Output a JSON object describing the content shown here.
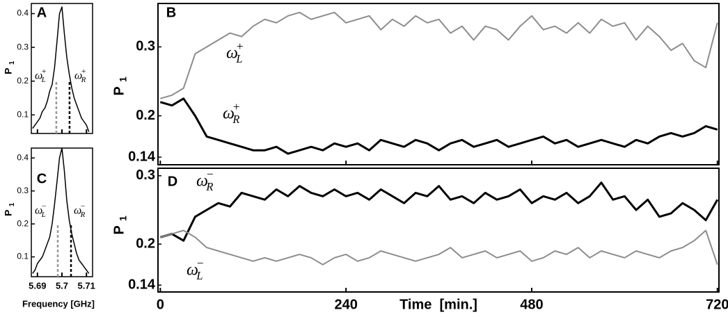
{
  "chart_data": [
    {
      "type": "line",
      "panel": "A",
      "ylabel": {
        "text": "P",
        "sub": "1"
      },
      "xlim": [
        5.6875,
        5.7125
      ],
      "ylim": [
        0.045,
        0.43
      ],
      "xticks": [
        5.69,
        5.7,
        5.71
      ],
      "yticks": [
        0.1,
        0.2,
        0.3,
        0.4
      ],
      "x": [
        5.688,
        5.689,
        5.69,
        5.691,
        5.692,
        5.693,
        5.694,
        5.695,
        5.696,
        5.697,
        5.698,
        5.699,
        5.7,
        5.701,
        5.702,
        5.703,
        5.704,
        5.705,
        5.706,
        5.707,
        5.708,
        5.709,
        5.71,
        5.711
      ],
      "series": [
        {
          "color": "#000000",
          "values": [
            0.06,
            0.07,
            0.08,
            0.09,
            0.11,
            0.12,
            0.14,
            0.17,
            0.19,
            0.24,
            0.32,
            0.4,
            0.42,
            0.34,
            0.27,
            0.22,
            0.18,
            0.15,
            0.13,
            0.11,
            0.09,
            0.08,
            0.07,
            0.05
          ]
        }
      ],
      "markers": [
        {
          "x": 5.6977,
          "height": 0.2,
          "color": "#999999",
          "name": "ω",
          "sub": "L",
          "sup": "+"
        },
        {
          "x": 5.7031,
          "height": 0.2,
          "color": "#000000",
          "name": "ω",
          "sub": "R",
          "sup": "+"
        }
      ]
    },
    {
      "type": "line",
      "panel": "B",
      "ylabel": {
        "text": "P",
        "sub": "1"
      },
      "xlim": [
        -3,
        722
      ],
      "ylim": [
        0.129,
        0.363
      ],
      "xticks": [
        0,
        240,
        480,
        720
      ],
      "yticks": [
        0.14,
        0.2,
        0.3
      ],
      "x": [
        0,
        15,
        30,
        45,
        60,
        75,
        90,
        105,
        120,
        135,
        150,
        165,
        180,
        195,
        210,
        225,
        240,
        255,
        270,
        285,
        300,
        315,
        330,
        345,
        360,
        375,
        390,
        405,
        420,
        435,
        450,
        465,
        480,
        495,
        510,
        525,
        540,
        555,
        570,
        585,
        600,
        615,
        630,
        645,
        660,
        675,
        690,
        705,
        720
      ],
      "series": [
        {
          "name": "ω",
          "sub": "L",
          "sup": "+",
          "color": "#8c8c8c",
          "width": 2,
          "values": [
            0.225,
            0.23,
            0.24,
            0.29,
            0.3,
            0.31,
            0.32,
            0.315,
            0.33,
            0.34,
            0.335,
            0.345,
            0.35,
            0.34,
            0.345,
            0.35,
            0.335,
            0.34,
            0.345,
            0.325,
            0.34,
            0.33,
            0.345,
            0.335,
            0.34,
            0.32,
            0.33,
            0.31,
            0.33,
            0.325,
            0.31,
            0.33,
            0.345,
            0.325,
            0.33,
            0.32,
            0.335,
            0.32,
            0.34,
            0.33,
            0.335,
            0.31,
            0.33,
            0.315,
            0.295,
            0.305,
            0.28,
            0.27,
            0.335
          ]
        },
        {
          "name": "ω",
          "sub": "R",
          "sup": "+",
          "color": "#000000",
          "width": 3,
          "values": [
            0.22,
            0.215,
            0.225,
            0.2,
            0.17,
            0.165,
            0.16,
            0.155,
            0.15,
            0.15,
            0.155,
            0.145,
            0.15,
            0.155,
            0.15,
            0.16,
            0.155,
            0.16,
            0.15,
            0.165,
            0.16,
            0.155,
            0.165,
            0.16,
            0.15,
            0.16,
            0.165,
            0.155,
            0.16,
            0.165,
            0.155,
            0.16,
            0.165,
            0.17,
            0.16,
            0.165,
            0.155,
            0.16,
            0.165,
            0.16,
            0.155,
            0.165,
            0.16,
            0.17,
            0.175,
            0.17,
            0.175,
            0.185,
            0.18
          ]
        }
      ]
    },
    {
      "type": "line",
      "panel": "C",
      "ylabel": {
        "text": "P",
        "sub": "1"
      },
      "xlabel": "Frequency [GHz]",
      "xlim": [
        5.6875,
        5.7125
      ],
      "ylim": [
        0.04,
        0.43
      ],
      "xticks": [
        5.69,
        5.7,
        5.71
      ],
      "yticks": [
        0.1,
        0.2,
        0.3,
        0.4
      ],
      "x": [
        5.688,
        5.689,
        5.69,
        5.691,
        5.692,
        5.693,
        5.694,
        5.695,
        5.696,
        5.697,
        5.698,
        5.699,
        5.7,
        5.701,
        5.702,
        5.703,
        5.704,
        5.705,
        5.706,
        5.707,
        5.708,
        5.709,
        5.71,
        5.711
      ],
      "series": [
        {
          "color": "#000000",
          "values": [
            0.05,
            0.06,
            0.08,
            0.09,
            0.1,
            0.12,
            0.14,
            0.16,
            0.2,
            0.26,
            0.33,
            0.4,
            0.43,
            0.36,
            0.27,
            0.21,
            0.17,
            0.14,
            0.11,
            0.09,
            0.08,
            0.07,
            0.06,
            0.05
          ]
        }
      ],
      "markers": [
        {
          "x": 5.6983,
          "height": 0.2,
          "color": "#999999",
          "name": "ω",
          "sub": "L",
          "sup": "−"
        },
        {
          "x": 5.7037,
          "height": 0.2,
          "color": "#000000",
          "name": "ω",
          "sub": "R",
          "sup": "−"
        }
      ]
    },
    {
      "type": "line",
      "panel": "D",
      "ylabel": {
        "text": "P",
        "sub": "1"
      },
      "xlabel": "Time  [min.]",
      "xlim": [
        -3,
        722
      ],
      "ylim": [
        0.13,
        0.311
      ],
      "xticks": [
        0,
        240,
        480,
        720
      ],
      "yticks": [
        0.14,
        0.2,
        0.3
      ],
      "x": [
        0,
        15,
        30,
        45,
        60,
        75,
        90,
        105,
        120,
        135,
        150,
        165,
        180,
        195,
        210,
        225,
        240,
        255,
        270,
        285,
        300,
        315,
        330,
        345,
        360,
        375,
        390,
        405,
        420,
        435,
        450,
        465,
        480,
        495,
        510,
        525,
        540,
        555,
        570,
        585,
        600,
        615,
        630,
        645,
        660,
        675,
        690,
        705,
        720
      ],
      "series": [
        {
          "name": "ω",
          "sub": "R",
          "sup": "−",
          "color": "#000000",
          "width": 3,
          "values": [
            0.21,
            0.215,
            0.205,
            0.24,
            0.25,
            0.26,
            0.255,
            0.275,
            0.27,
            0.265,
            0.28,
            0.27,
            0.285,
            0.275,
            0.27,
            0.28,
            0.27,
            0.275,
            0.265,
            0.28,
            0.27,
            0.26,
            0.275,
            0.27,
            0.285,
            0.265,
            0.27,
            0.26,
            0.275,
            0.265,
            0.27,
            0.28,
            0.26,
            0.27,
            0.265,
            0.275,
            0.26,
            0.27,
            0.29,
            0.265,
            0.27,
            0.25,
            0.265,
            0.24,
            0.245,
            0.26,
            0.25,
            0.235,
            0.265
          ]
        },
        {
          "name": "ω",
          "sub": "L",
          "sup": "−",
          "color": "#8c8c8c",
          "width": 2,
          "values": [
            0.21,
            0.215,
            0.22,
            0.21,
            0.195,
            0.19,
            0.185,
            0.18,
            0.175,
            0.18,
            0.175,
            0.18,
            0.185,
            0.18,
            0.17,
            0.18,
            0.185,
            0.175,
            0.18,
            0.19,
            0.185,
            0.18,
            0.175,
            0.18,
            0.185,
            0.195,
            0.18,
            0.185,
            0.19,
            0.18,
            0.185,
            0.19,
            0.175,
            0.18,
            0.19,
            0.185,
            0.195,
            0.18,
            0.19,
            0.185,
            0.18,
            0.19,
            0.185,
            0.18,
            0.19,
            0.195,
            0.205,
            0.22,
            0.17
          ]
        }
      ]
    }
  ]
}
